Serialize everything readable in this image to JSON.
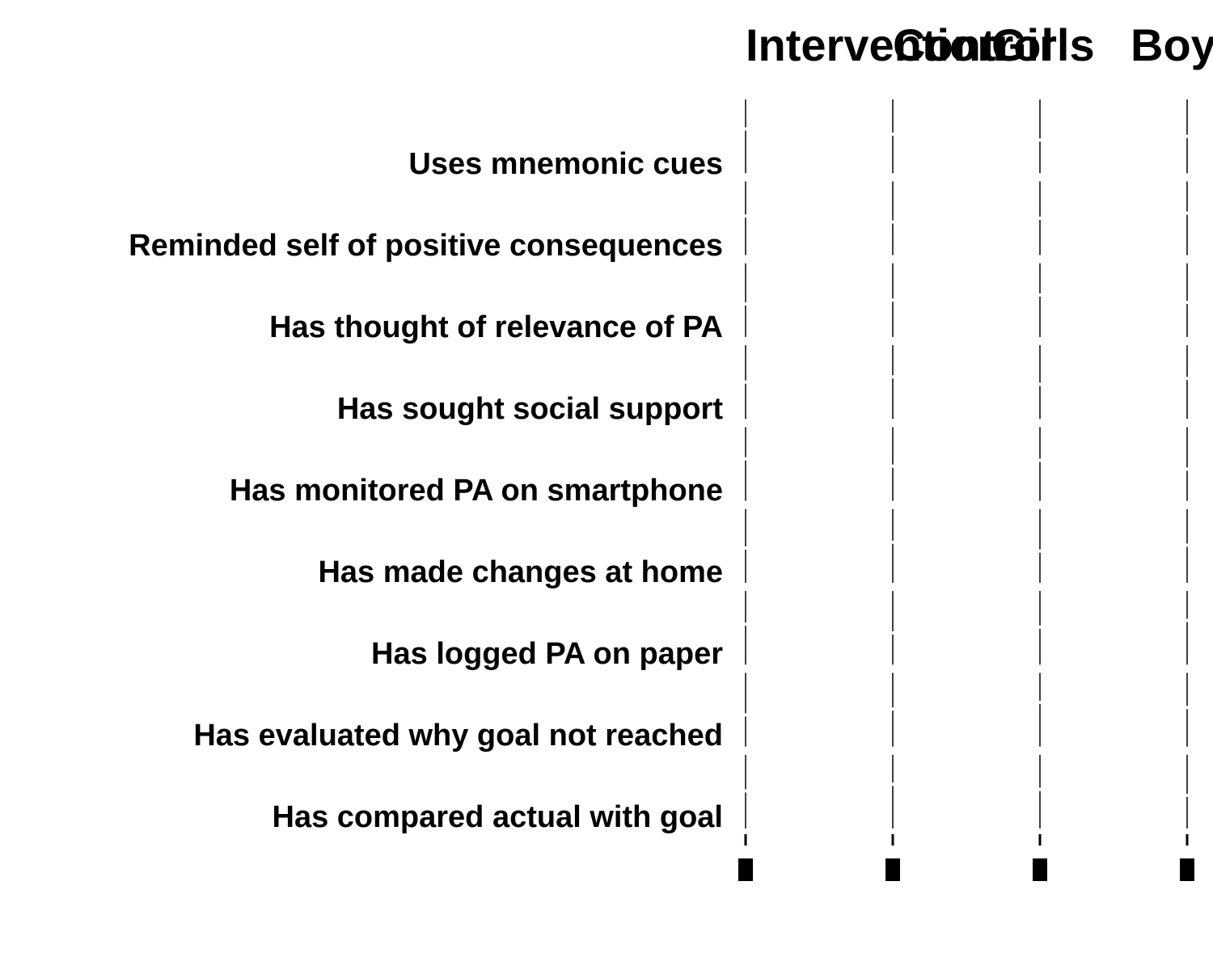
{
  "chart_data": {
    "type": "bar",
    "panels": [
      {
        "title": "Intervention"
      },
      {
        "title": "Control"
      },
      {
        "title": "Girls"
      },
      {
        "title": "Boys"
      }
    ],
    "categories": [
      "Uses mnemonic cues",
      "Reminded self of positive consequences",
      "Has thought of relevance of PA",
      "Has sought social support",
      "Has monitored PA on smartphone",
      "Has made changes at home",
      "Has logged PA on paper",
      "Has evaluated why goal not reached",
      "Has compared actual with goal"
    ],
    "xlabel": "",
    "ylabel": "",
    "grid": false,
    "legend": "none",
    "colors": {
      "text": "#000000",
      "lines": "#000000",
      "background": "#ffffff"
    }
  }
}
